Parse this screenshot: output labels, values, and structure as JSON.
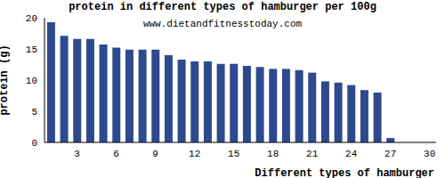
{
  "chart_data": {
    "type": "bar",
    "title": "protein in different types of hamburger per 100g",
    "subtitle": "www.dietandfitnesstoday.com",
    "x_label": "Different types of hamburger",
    "y_label": "protein (g)",
    "categories": [
      null,
      null,
      "3",
      null,
      null,
      "6",
      null,
      null,
      "9",
      null,
      null,
      "12",
      null,
      null,
      "15",
      null,
      null,
      "18",
      null,
      null,
      "21",
      null,
      null,
      "24",
      null,
      null,
      "27",
      null,
      null,
      "30"
    ],
    "values": [
      19.3,
      17.1,
      16.6,
      16.6,
      15.7,
      15.2,
      14.9,
      14.9,
      14.9,
      14.0,
      13.3,
      13.0,
      13.0,
      12.6,
      12.6,
      12.3,
      12.1,
      11.8,
      11.8,
      11.6,
      11.2,
      9.8,
      9.6,
      9.2,
      8.4,
      8.0,
      0.7,
      0,
      0,
      0
    ],
    "color": "#2e4a8e",
    "ylim": [
      0,
      20
    ],
    "yticks": [
      0,
      5,
      10,
      15,
      20
    ],
    "grid": false
  }
}
